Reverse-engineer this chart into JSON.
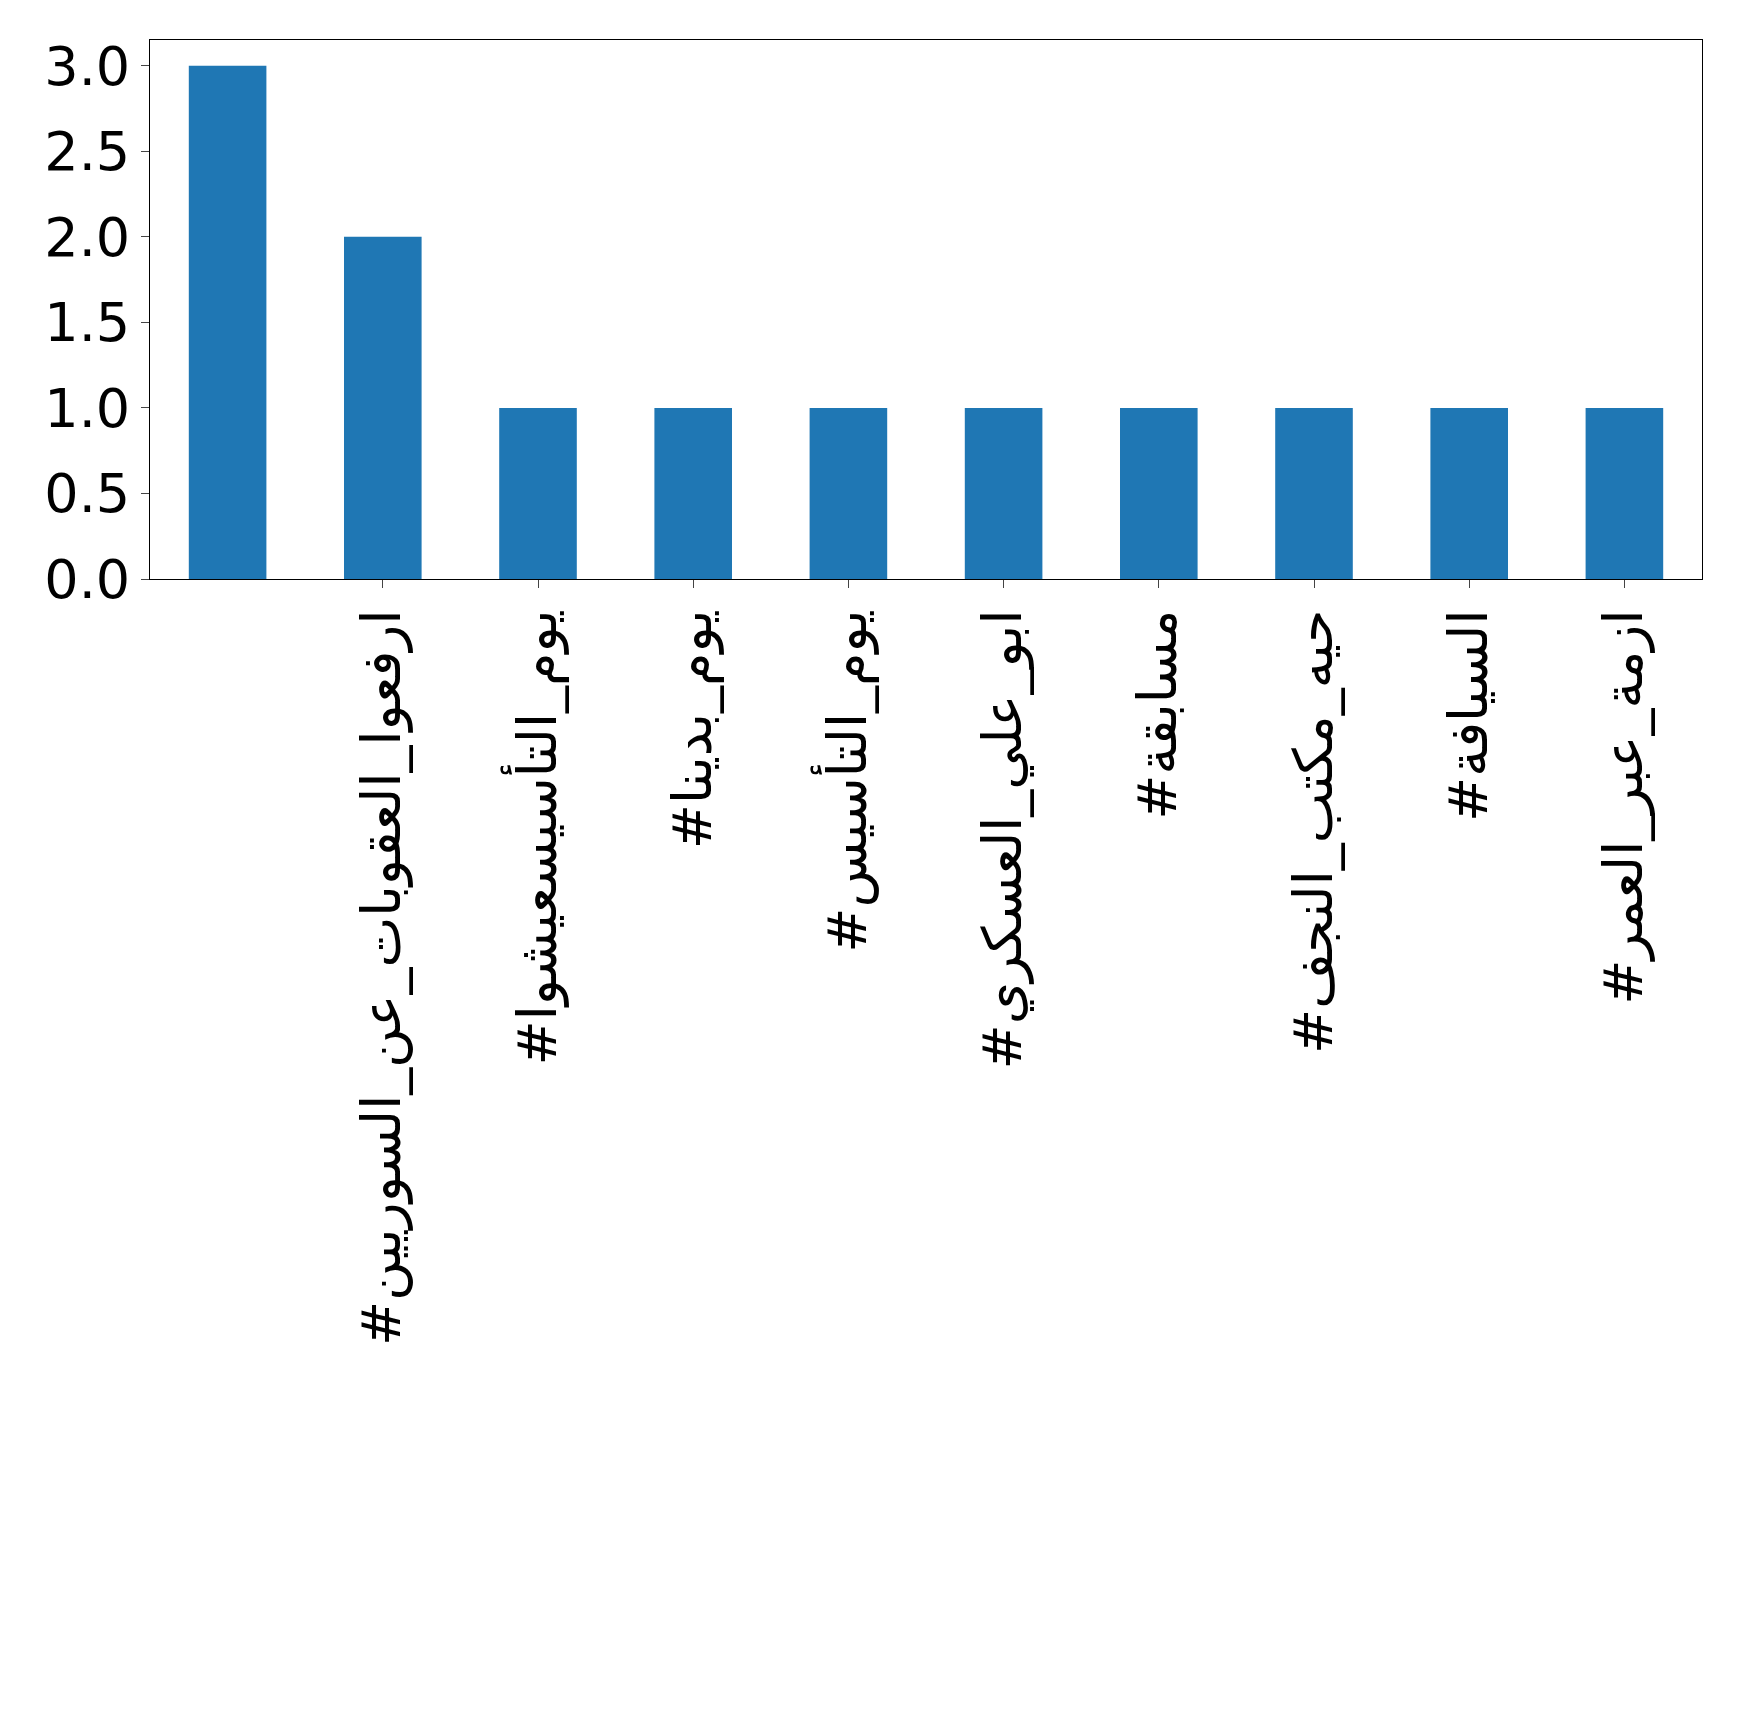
{
  "chart_data": {
    "type": "bar",
    "categories": [
      null,
      "#ارفعوا_العقوبات_عن_السوريين",
      "#يوم_التأسيسعيشوا",
      "#يوم_بدينا",
      "#يوم_التأسيس",
      "#ابو_علي_العسكري",
      "#مسابقة",
      "#حيه_مكتب_النجف",
      "#السيافة",
      "#ازمة_عبر_العمر"
    ],
    "values": [
      3,
      2,
      1,
      1,
      1,
      1,
      1,
      1,
      1,
      1
    ],
    "color": "#1f77b4",
    "ylim": [
      0,
      3.15
    ],
    "yticks": [
      {
        "value": 0,
        "label": "0.0"
      },
      {
        "value": 0.5,
        "label": "0.5"
      },
      {
        "value": 1,
        "label": "1.0"
      },
      {
        "value": 1.5,
        "label": "1.5"
      },
      {
        "value": 2,
        "label": "2.0"
      },
      {
        "value": 2.5,
        "label": "2.5"
      },
      {
        "value": 3,
        "label": "3.0"
      }
    ]
  }
}
